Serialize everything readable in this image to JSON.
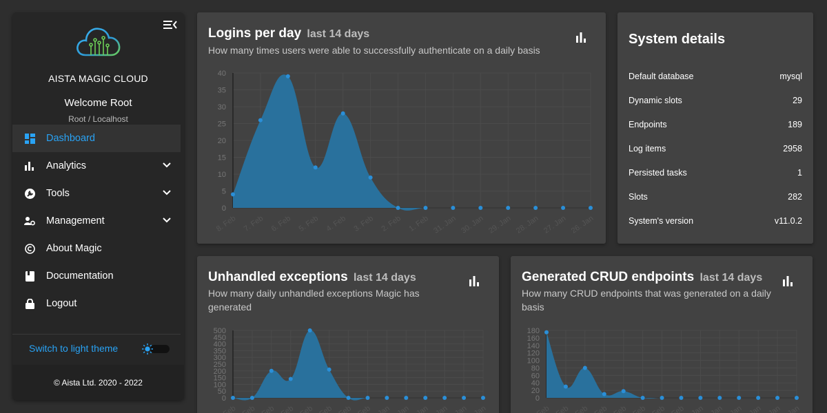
{
  "sidebar": {
    "brand": "AISTA MAGIC CLOUD",
    "welcome": "Welcome Root",
    "user_info": "Root / Localhost",
    "items": [
      {
        "label": "Dashboard"
      },
      {
        "label": "Analytics"
      },
      {
        "label": "Tools"
      },
      {
        "label": "Management"
      },
      {
        "label": "About Magic"
      },
      {
        "label": "Documentation"
      },
      {
        "label": "Logout"
      }
    ],
    "theme_switch": "Switch to light theme",
    "copyright": "© Aista Ltd. 2020 - 2022",
    "accent_color": "#29a3f5"
  },
  "logins": {
    "title": "Logins per day",
    "suffix": "last 14 days",
    "description": "How many times users were able to successfully authenticate on a daily basis"
  },
  "exceptions": {
    "title": "Unhandled exceptions",
    "suffix": "last 14 days",
    "description": "How many daily unhandled exceptions Magic has generated"
  },
  "crud": {
    "title": "Generated CRUD endpoints",
    "suffix": "last 14 days",
    "description": "How many CRUD endpoints that was generated on a daily basis"
  },
  "system": {
    "title": "System details",
    "rows": [
      {
        "label": "Default database",
        "value": "mysql"
      },
      {
        "label": "Dynamic slots",
        "value": "29"
      },
      {
        "label": "Endpoints",
        "value": "189"
      },
      {
        "label": "Log items",
        "value": "2958"
      },
      {
        "label": "Persisted tasks",
        "value": "1"
      },
      {
        "label": "Slots",
        "value": "282"
      },
      {
        "label": "System's version",
        "value": "v11.0.2"
      }
    ]
  },
  "chart_data": [
    {
      "type": "area",
      "title": "Logins per day",
      "categories": [
        "8. Feb",
        "7. Feb",
        "6. Feb",
        "5. Feb",
        "4. Feb",
        "3. Feb",
        "2. Feb",
        "1. Feb",
        "31. Jan",
        "30. Jan",
        "29. Jan",
        "28. Jan",
        "27. Jan",
        "26. Jan"
      ],
      "values": [
        4,
        26,
        39,
        12,
        28,
        9,
        0,
        0,
        0,
        0,
        0,
        0,
        0,
        0
      ],
      "yticks": [
        0,
        5,
        10,
        15,
        20,
        25,
        30,
        35,
        40
      ],
      "ylim": [
        0,
        40
      ],
      "color": "#29719d"
    },
    {
      "type": "area",
      "title": "Unhandled exceptions",
      "categories": [
        "8. Feb",
        "7. Feb",
        "6. Feb",
        "5. Feb",
        "4. Feb",
        "3. Feb",
        "2. Feb",
        "1. Feb",
        "31. Jan",
        "30. Jan",
        "29. Jan",
        "28. Jan",
        "27. Jan",
        "26. Jan"
      ],
      "values": [
        0,
        0,
        200,
        140,
        500,
        210,
        0,
        0,
        0,
        0,
        0,
        0,
        0,
        0
      ],
      "yticks": [
        0,
        50,
        100,
        150,
        200,
        250,
        300,
        350,
        400,
        450,
        500
      ],
      "ylim": [
        0,
        500
      ],
      "color": "#29719d"
    },
    {
      "type": "area",
      "title": "Generated CRUD endpoints",
      "categories": [
        "8. Feb",
        "7. Feb",
        "6. Feb",
        "5. Feb",
        "4. Feb",
        "3. Feb",
        "2. Feb",
        "1. Feb",
        "31. Jan",
        "30. Jan",
        "29. Jan",
        "28. Jan",
        "27. Jan",
        "26. Jan"
      ],
      "values": [
        175,
        30,
        80,
        10,
        18,
        0,
        0,
        0,
        0,
        0,
        0,
        0,
        0,
        0
      ],
      "yticks": [
        0,
        20,
        40,
        60,
        80,
        100,
        120,
        140,
        160,
        180
      ],
      "ylim": [
        0,
        180
      ],
      "color": "#29719d"
    }
  ]
}
